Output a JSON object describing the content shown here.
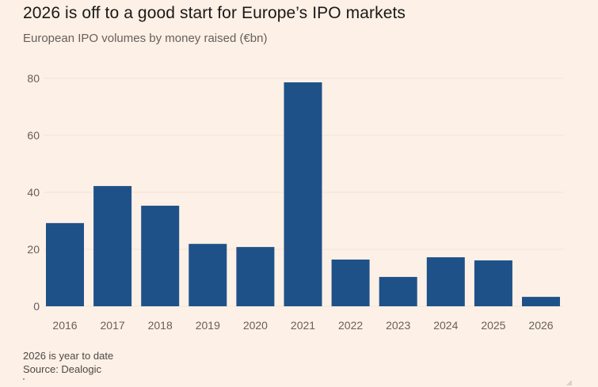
{
  "header": {
    "title": "2026 is off to a good start for Europe’s IPO markets",
    "subtitle": "European IPO volumes by money raised (€bn)"
  },
  "footer": {
    "note": "2026 is year to date",
    "source": "Source: Dealogic"
  },
  "colors": {
    "bar": "#1f5189",
    "grid": "#f1e3d7",
    "axis_text": "#66605c",
    "background": "#fdf0e6"
  },
  "chart_data": {
    "type": "bar",
    "title": "2026 is off to a good start for Europe’s IPO markets",
    "subtitle": "European IPO volumes by money raised (€bn)",
    "xlabel": "",
    "ylabel": "",
    "categories": [
      "2016",
      "2017",
      "2018",
      "2019",
      "2020",
      "2021",
      "2022",
      "2023",
      "2024",
      "2025",
      "2026"
    ],
    "values": [
      29.2,
      42.2,
      35.3,
      21.9,
      20.8,
      78.6,
      16.4,
      10.3,
      17.2,
      16.1,
      3.3
    ],
    "ylim": [
      0,
      80
    ],
    "yticks": [
      0,
      20,
      40,
      60,
      80
    ],
    "grid": true,
    "legend": "none",
    "annotations": [
      "2026 is year to date",
      "Source: Dealogic"
    ]
  }
}
